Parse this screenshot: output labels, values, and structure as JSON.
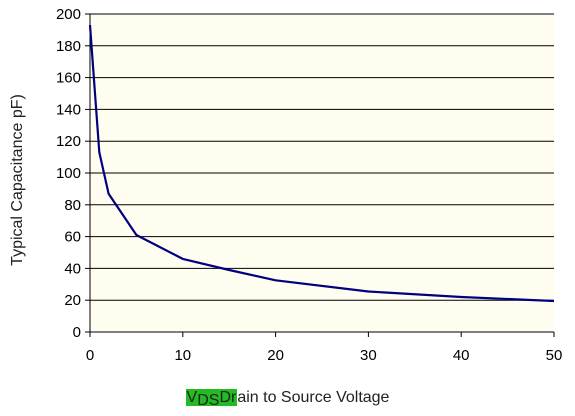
{
  "chart_data": {
    "type": "line",
    "ylabel": "Typical Capacitance pF)",
    "xlabel_parts": {
      "v": "V",
      "ds": "DS",
      "dr": "Dr",
      "rest": "ain to Source Voltage"
    },
    "xlim": [
      0,
      50
    ],
    "ylim": [
      0,
      200
    ],
    "x_ticks": [
      0,
      10,
      20,
      30,
      40,
      50
    ],
    "y_ticks": [
      0,
      20,
      40,
      60,
      80,
      100,
      120,
      140,
      160,
      180,
      200
    ],
    "grid": true,
    "series": [
      {
        "x": [
          0,
          1,
          2,
          5,
          10,
          15,
          20,
          30,
          40,
          50
        ],
        "y": [
          193,
          113,
          87,
          61,
          46,
          39,
          32.5,
          25.5,
          22,
          19.5
        ]
      }
    ],
    "colors": {
      "line": "#000080",
      "plot_background": "#fffdf0",
      "highlight": "#22bb22"
    }
  }
}
